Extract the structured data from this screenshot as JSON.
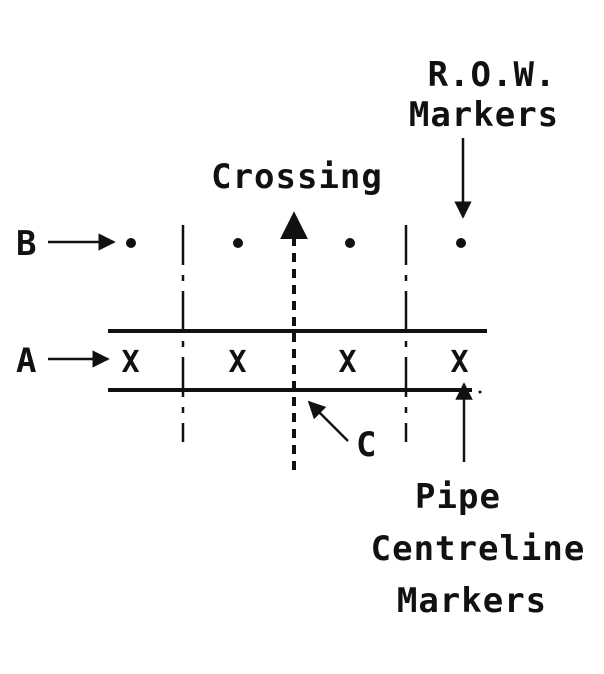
{
  "labels": {
    "row_markers_line1": "R.O.W.",
    "row_markers_line2": "Markers",
    "crossing": "Crossing",
    "b": "B",
    "a": "A",
    "c": "C",
    "pipe_line1": "Pipe",
    "pipe_line2": "Centreline",
    "pipe_line3": "Markers"
  },
  "markers": {
    "row_marker_symbol": "dot",
    "pipe_marker_symbol": "X",
    "pipe_marker_count": 4,
    "row_marker_count": 4
  },
  "colors": {
    "ink": "#111111",
    "background": "#ffffff"
  }
}
